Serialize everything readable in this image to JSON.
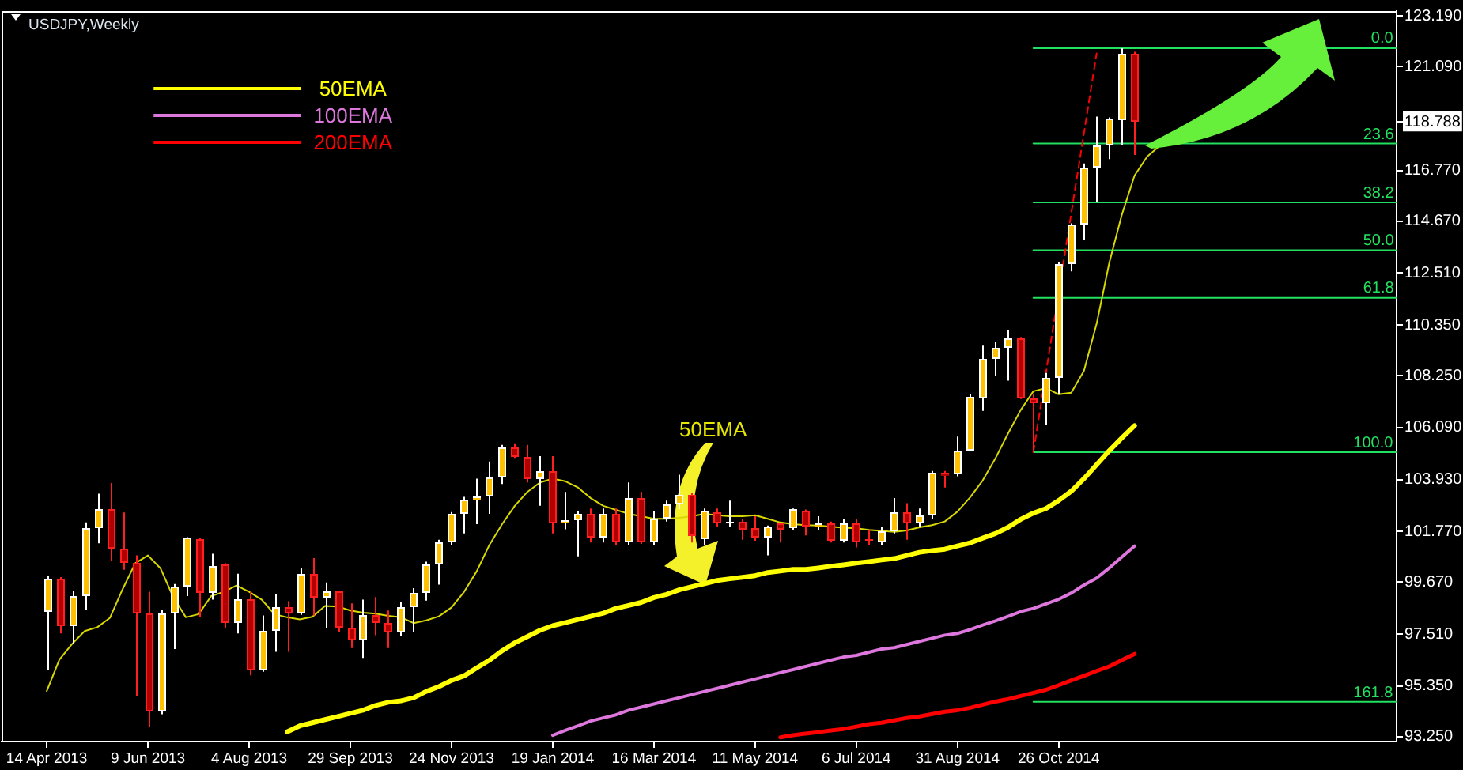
{
  "chart_data": {
    "type": "candlestick",
    "title": "USDJPY,Weekly",
    "x": [
      "2013-04-14",
      "2013-04-21",
      "2013-04-28",
      "2013-05-05",
      "2013-05-12",
      "2013-05-19",
      "2013-05-26",
      "2013-06-02",
      "2013-06-09",
      "2013-06-16",
      "2013-06-23",
      "2013-06-30",
      "2013-07-07",
      "2013-07-14",
      "2013-07-21",
      "2013-07-28",
      "2013-08-04",
      "2013-08-11",
      "2013-08-18",
      "2013-08-25",
      "2013-09-01",
      "2013-09-08",
      "2013-09-15",
      "2013-09-22",
      "2013-09-29",
      "2013-10-06",
      "2013-10-13",
      "2013-10-20",
      "2013-10-27",
      "2013-11-03",
      "2013-11-10",
      "2013-11-17",
      "2013-11-24",
      "2013-12-01",
      "2013-12-08",
      "2013-12-15",
      "2013-12-22",
      "2013-12-29",
      "2014-01-05",
      "2014-01-12",
      "2014-01-19",
      "2014-01-26",
      "2014-02-02",
      "2014-02-09",
      "2014-02-16",
      "2014-02-23",
      "2014-03-02",
      "2014-03-09",
      "2014-03-16",
      "2014-03-23",
      "2014-03-30",
      "2014-04-06",
      "2014-04-13",
      "2014-04-20",
      "2014-04-27",
      "2014-05-04",
      "2014-05-11",
      "2014-05-18",
      "2014-05-25",
      "2014-06-01",
      "2014-06-08",
      "2014-06-15",
      "2014-06-22",
      "2014-06-29",
      "2014-07-06",
      "2014-07-13",
      "2014-07-20",
      "2014-07-27",
      "2014-08-03",
      "2014-08-10",
      "2014-08-17",
      "2014-08-24",
      "2014-08-31",
      "2014-09-07",
      "2014-09-14",
      "2014-09-21",
      "2014-09-28",
      "2014-10-05",
      "2014-10-12",
      "2014-10-19",
      "2014-10-26",
      "2014-11-02",
      "2014-11-09",
      "2014-11-16",
      "2014-11-23",
      "2014-11-30",
      "2014-12-07"
    ],
    "ohlc": [
      [
        98.44,
        99.92,
        96.02,
        99.81
      ],
      [
        99.81,
        99.88,
        97.54,
        97.86
      ],
      [
        97.86,
        99.31,
        97.1,
        99.12
      ],
      [
        99.12,
        102.15,
        98.51,
        101.93
      ],
      [
        101.93,
        103.34,
        101.28,
        102.71
      ],
      [
        102.71,
        103.79,
        100.57,
        101.06
      ],
      [
        101.09,
        102.56,
        100.18,
        100.5
      ],
      [
        100.5,
        100.78,
        94.94,
        98.36
      ],
      [
        98.38,
        99.27,
        93.64,
        94.33
      ],
      [
        94.29,
        98.51,
        94.18,
        98.38
      ],
      [
        98.34,
        99.59,
        96.89,
        99.46
      ],
      [
        99.46,
        101.54,
        99.09,
        101.5
      ],
      [
        101.48,
        101.52,
        98.21,
        99.2
      ],
      [
        99.2,
        100.85,
        98.94,
        100.35
      ],
      [
        100.39,
        100.46,
        97.75,
        97.97
      ],
      [
        97.97,
        100.02,
        97.54,
        98.96
      ],
      [
        98.96,
        99.27,
        95.8,
        96.02
      ],
      [
        96.02,
        98.29,
        95.95,
        97.64
      ],
      [
        97.64,
        99.16,
        96.78,
        98.66
      ],
      [
        98.66,
        98.88,
        96.78,
        98.36
      ],
      [
        98.36,
        100.24,
        98.31,
        100.0
      ],
      [
        100.0,
        100.67,
        98.29,
        99.01
      ],
      [
        99.01,
        99.66,
        97.75,
        99.27
      ],
      [
        99.27,
        99.31,
        97.58,
        97.75
      ],
      [
        97.8,
        98.79,
        96.93,
        97.25
      ],
      [
        97.25,
        98.94,
        96.52,
        98.29
      ],
      [
        98.31,
        99.05,
        97.47,
        97.97
      ],
      [
        97.97,
        98.49,
        96.93,
        97.58
      ],
      [
        97.58,
        98.83,
        97.43,
        98.66
      ],
      [
        98.66,
        99.42,
        97.58,
        99.2
      ],
      [
        99.2,
        100.52,
        98.9,
        100.39
      ],
      [
        100.39,
        101.43,
        99.57,
        101.3
      ],
      [
        101.3,
        102.58,
        101.22,
        102.51
      ],
      [
        102.51,
        103.21,
        101.69,
        103.1
      ],
      [
        103.1,
        103.97,
        102.08,
        103.23
      ],
      [
        103.23,
        104.68,
        102.51,
        104.01
      ],
      [
        104.01,
        105.37,
        103.75,
        105.29
      ],
      [
        105.29,
        105.44,
        104.83,
        104.9
      ],
      [
        104.9,
        105.37,
        103.81,
        103.92
      ],
      [
        103.92,
        104.9,
        102.84,
        104.25
      ],
      [
        104.29,
        104.9,
        101.69,
        102.13
      ],
      [
        102.13,
        103.42,
        101.87,
        102.26
      ],
      [
        102.26,
        102.62,
        100.74,
        102.51
      ],
      [
        102.51,
        102.73,
        101.32,
        101.52
      ],
      [
        101.52,
        102.73,
        101.32,
        102.51
      ],
      [
        102.51,
        102.73,
        101.22,
        101.32
      ],
      [
        101.32,
        103.81,
        101.22,
        103.16
      ],
      [
        103.16,
        103.42,
        101.26,
        101.32
      ],
      [
        101.32,
        102.62,
        101.22,
        102.3
      ],
      [
        102.3,
        103.06,
        102.19,
        102.9
      ],
      [
        102.9,
        104.13,
        102.7,
        103.27
      ],
      [
        103.27,
        103.38,
        101.32,
        101.6
      ],
      [
        101.43,
        102.73,
        101.22,
        102.62
      ],
      [
        102.58,
        102.73,
        101.97,
        102.13
      ],
      [
        102.08,
        103.06,
        101.97,
        102.19
      ],
      [
        102.19,
        102.3,
        101.43,
        101.87
      ],
      [
        101.91,
        102.41,
        101.39,
        101.54
      ],
      [
        101.54,
        102.02,
        100.78,
        101.97
      ],
      [
        102.08,
        102.1,
        101.32,
        101.87
      ],
      [
        101.91,
        102.73,
        101.82,
        102.69
      ],
      [
        102.62,
        102.69,
        101.61,
        101.97
      ],
      [
        101.97,
        102.41,
        101.82,
        102.13
      ],
      [
        102.13,
        102.19,
        101.32,
        101.39
      ],
      [
        101.39,
        102.3,
        101.32,
        102.13
      ],
      [
        102.13,
        102.3,
        101.11,
        101.35
      ],
      [
        101.43,
        101.82,
        101.22,
        101.37
      ],
      [
        101.32,
        101.97,
        101.22,
        101.76
      ],
      [
        101.76,
        103.16,
        101.69,
        102.58
      ],
      [
        102.58,
        102.95,
        101.43,
        102.08
      ],
      [
        102.08,
        102.73,
        101.97,
        102.41
      ],
      [
        102.41,
        104.29,
        102.3,
        104.2
      ],
      [
        104.2,
        104.29,
        103.6,
        104.09
      ],
      [
        104.14,
        105.72,
        104.07,
        105.16
      ],
      [
        105.16,
        107.49,
        105.11,
        107.39
      ],
      [
        107.32,
        109.49,
        106.78,
        108.97
      ],
      [
        108.97,
        109.66,
        108.23,
        109.4
      ],
      [
        109.4,
        110.14,
        108.04,
        109.81
      ],
      [
        109.81,
        109.85,
        107.28,
        107.32
      ],
      [
        107.32,
        107.49,
        105.07,
        107.1
      ],
      [
        107.1,
        108.36,
        106.2,
        108.14
      ],
      [
        108.14,
        112.95,
        107.49,
        112.86
      ],
      [
        112.86,
        114.57,
        112.58,
        114.53
      ],
      [
        114.53,
        117.06,
        113.88,
        116.87
      ],
      [
        116.87,
        119.01,
        115.44,
        117.78
      ],
      [
        117.78,
        118.97,
        117.24,
        118.9
      ],
      [
        118.86,
        121.85,
        117.82,
        121.61
      ],
      [
        121.61,
        121.7,
        117.41,
        118.788
      ]
    ],
    "colors": [
      "#ffc000",
      "#b00000",
      "#ffc000",
      "#ffc000",
      "#ffc000",
      "#b00000",
      "#b00000",
      "#b00000",
      "#b00000",
      "#ffc000",
      "#ffc000",
      "#ffc000",
      "#b00000",
      "#ffc000",
      "#b00000",
      "#ffc000",
      "#b00000",
      "#ffc000",
      "#ffc000",
      "#b00000",
      "#ffc000",
      "#b00000",
      "#ffc000",
      "#b00000",
      "#b00000",
      "#ffc000",
      "#b00000",
      "#b00000",
      "#ffc000",
      "#ffc000",
      "#ffc000",
      "#ffc000",
      "#ffc000",
      "#ffc000",
      "#ffc000",
      "#ffc000",
      "#ffc000",
      "#b00000",
      "#b00000",
      "#ffc000",
      "#b00000",
      "#ffc000",
      "#ffc000",
      "#b00000",
      "#ffc000",
      "#b00000",
      "#ffc000",
      "#b00000",
      "#ffc000",
      "#ffc000",
      "#ffc000",
      "#b00000",
      "#ffc000",
      "#b00000",
      "#ffc000",
      "#b00000",
      "#b00000",
      "#ffc000",
      "#b00000",
      "#ffc000",
      "#b00000",
      "#ffc000",
      "#b00000",
      "#ffc000",
      "#b00000",
      "#b00000",
      "#ffc000",
      "#ffc000",
      "#b00000",
      "#ffc000",
      "#ffc000",
      "#b00000",
      "#ffc000",
      "#ffc000",
      "#ffc000",
      "#ffc000",
      "#ffc000",
      "#b00000",
      "#b00000",
      "#ffc000",
      "#ffc000",
      "#ffc000",
      "#ffc000",
      "#ffc000",
      "#ffc000",
      "#ffc000",
      "#b00000"
    ],
    "series": [
      {
        "name": "50EMA",
        "type": "line",
        "color": "#ffff00",
        "values": [
          null,
          null,
          null,
          null,
          null,
          null,
          null,
          null,
          null,
          null,
          null,
          null,
          null,
          null,
          null,
          null,
          null,
          null,
          null,
          93.45,
          93.7,
          93.83,
          93.96,
          94.09,
          94.22,
          94.35,
          94.55,
          94.68,
          94.74,
          94.87,
          95.13,
          95.33,
          95.59,
          95.78,
          96.11,
          96.43,
          96.82,
          97.15,
          97.41,
          97.67,
          97.86,
          97.99,
          98.12,
          98.25,
          98.38,
          98.58,
          98.7,
          98.83,
          99.03,
          99.16,
          99.35,
          99.48,
          99.61,
          99.74,
          99.81,
          99.87,
          99.94,
          100.07,
          100.13,
          100.2,
          100.2,
          100.26,
          100.33,
          100.39,
          100.46,
          100.52,
          100.59,
          100.65,
          100.78,
          100.91,
          100.98,
          101.04,
          101.17,
          101.3,
          101.5,
          101.69,
          101.95,
          102.28,
          102.54,
          102.73,
          103.06,
          103.45,
          103.97,
          104.55,
          105.13,
          105.66,
          106.17
        ]
      },
      {
        "name": "100EMA",
        "type": "line",
        "color": "#dd77dd",
        "values": [
          null,
          null,
          null,
          null,
          null,
          null,
          null,
          null,
          null,
          null,
          null,
          null,
          null,
          null,
          null,
          null,
          null,
          null,
          null,
          null,
          null,
          null,
          null,
          null,
          null,
          null,
          null,
          null,
          null,
          null,
          null,
          null,
          null,
          null,
          null,
          null,
          null,
          null,
          null,
          null,
          93.31,
          93.51,
          93.7,
          93.9,
          94.03,
          94.16,
          94.35,
          94.48,
          94.61,
          94.74,
          94.87,
          95.0,
          95.13,
          95.26,
          95.39,
          95.52,
          95.65,
          95.78,
          95.91,
          96.04,
          96.17,
          96.3,
          96.43,
          96.56,
          96.63,
          96.76,
          96.89,
          96.95,
          97.08,
          97.21,
          97.34,
          97.47,
          97.54,
          97.7,
          97.89,
          98.06,
          98.25,
          98.45,
          98.58,
          98.77,
          98.96,
          99.22,
          99.55,
          99.84,
          100.26,
          100.72,
          101.17
        ]
      },
      {
        "name": "200EMA",
        "type": "line",
        "color": "#ff0000",
        "values": [
          null,
          null,
          null,
          null,
          null,
          null,
          null,
          null,
          null,
          null,
          null,
          null,
          null,
          null,
          null,
          null,
          null,
          null,
          null,
          null,
          null,
          null,
          null,
          null,
          null,
          null,
          null,
          null,
          null,
          null,
          null,
          null,
          null,
          null,
          null,
          null,
          null,
          null,
          null,
          null,
          null,
          null,
          null,
          null,
          null,
          null,
          null,
          null,
          null,
          null,
          null,
          null,
          null,
          null,
          null,
          null,
          null,
          null,
          93.22,
          93.31,
          93.38,
          93.44,
          93.51,
          93.57,
          93.67,
          93.77,
          93.83,
          93.93,
          94.03,
          94.09,
          94.19,
          94.29,
          94.35,
          94.45,
          94.58,
          94.71,
          94.81,
          94.94,
          95.07,
          95.2,
          95.39,
          95.59,
          95.78,
          95.98,
          96.17,
          96.43,
          96.69
        ]
      },
      {
        "type": "line",
        "color": "#d8d800",
        "x": [
          "2013-04-14",
          "2013-04-21",
          "2013-04-28",
          "2013-05-05",
          "2013-05-12",
          "2013-05-19",
          "2013-05-26",
          "2013-06-02",
          "2013-06-09",
          "2013-06-16",
          "2013-06-23",
          "2013-06-30",
          "2013-07-07",
          "2013-07-14",
          "2013-07-21",
          "2013-07-28",
          "2013-08-04",
          "2013-08-11",
          "2013-08-18",
          "2013-08-25",
          "2013-09-01",
          "2013-09-08",
          "2013-09-15",
          "2013-09-22",
          "2013-09-29",
          "2013-10-06",
          "2013-10-13",
          "2013-10-20",
          "2013-10-27",
          "2013-11-03",
          "2013-11-10",
          "2013-11-17",
          "2013-11-24",
          "2013-12-01",
          "2013-12-08",
          "2013-12-15",
          "2013-12-22",
          "2013-12-29",
          "2014-01-05",
          "2014-01-12",
          "2014-01-19",
          "2014-01-26",
          "2014-02-02",
          "2014-02-09",
          "2014-02-16",
          "2014-02-23",
          "2014-03-02",
          "2014-03-09",
          "2014-03-16",
          "2014-03-23",
          "2014-03-30",
          "2014-04-06",
          "2014-04-13",
          "2014-04-20",
          "2014-04-27",
          "2014-05-04",
          "2014-05-11",
          "2014-05-18",
          "2014-05-25",
          "2014-06-01",
          "2014-06-08",
          "2014-06-15",
          "2014-06-22",
          "2014-06-29",
          "2014-07-06",
          "2014-07-13",
          "2014-07-20",
          "2014-07-27",
          "2014-08-03",
          "2014-08-10",
          "2014-08-17",
          "2014-08-24",
          "2014-08-31",
          "2014-09-07",
          "2014-09-14",
          "2014-09-21",
          "2014-09-28",
          "2014-10-05",
          "2014-10-12",
          "2014-10-19",
          "2014-10-26",
          "2014-11-02",
          "2014-11-09",
          "2014-11-16",
          "2014-11-23",
          "2014-11-30",
          "2014-12-07",
          "2014-12-14",
          "2014-12-21"
        ],
        "values": [
          95.15,
          96.45,
          97.1,
          97.64,
          97.8,
          98.19,
          99.38,
          100.46,
          100.78,
          100.24,
          99.05,
          98.21,
          98.34,
          99.09,
          99.27,
          99.53,
          99.27,
          98.94,
          98.34,
          98.21,
          98.12,
          98.23,
          98.68,
          98.66,
          98.49,
          98.4,
          98.36,
          98.27,
          98.21,
          97.97,
          98.08,
          98.25,
          98.62,
          99.27,
          100.13,
          101.22,
          102.08,
          102.84,
          103.42,
          103.81,
          103.97,
          103.86,
          103.6,
          103.16,
          102.84,
          102.67,
          102.51,
          102.41,
          102.3,
          102.3,
          102.34,
          102.41,
          102.51,
          102.45,
          102.41,
          102.41,
          102.45,
          102.3,
          102.15,
          102.08,
          102.04,
          102.02,
          101.97,
          101.93,
          101.91,
          101.84,
          101.8,
          101.76,
          101.82,
          101.95,
          102.04,
          102.19,
          102.6,
          103.19,
          103.9,
          104.81,
          105.85,
          106.82,
          107.6,
          107.73,
          107.47,
          107.54,
          108.45,
          110.4,
          112.93,
          114.94,
          116.56,
          117.35,
          117.8
        ]
      },
      {
        "type": "line",
        "color": "#ff0000",
        "line_style": "dashed",
        "x": [
          "2014-10-12",
          "2014-11-16"
        ],
        "values": [
          105.07,
          121.63
        ]
      },
      {
        "type": "line",
        "color": "#22e060",
        "x": [
          "2014-10-12",
          "2015-05-01"
        ],
        "values": [
          121.85,
          121.85
        ]
      },
      {
        "type": "line",
        "color": "#22e060",
        "x": [
          "2014-10-12",
          "2015-05-01"
        ],
        "values": [
          117.89,
          117.89
        ]
      },
      {
        "type": "line",
        "color": "#22e060",
        "x": [
          "2014-10-12",
          "2015-05-01"
        ],
        "values": [
          115.44,
          115.44
        ]
      },
      {
        "type": "line",
        "color": "#22e060",
        "x": [
          "2014-10-12",
          "2015-05-01"
        ],
        "values": [
          113.46,
          113.46
        ]
      },
      {
        "type": "line",
        "color": "#22e060",
        "x": [
          "2014-10-12",
          "2015-05-01"
        ],
        "values": [
          111.48,
          111.48
        ]
      },
      {
        "type": "line",
        "color": "#22e060",
        "x": [
          "2014-10-12",
          "2015-05-01"
        ],
        "values": [
          105.07,
          105.07
        ]
      },
      {
        "type": "line",
        "color": "#22e060",
        "x": [
          "2014-10-12",
          "2015-05-01"
        ],
        "values": [
          94.7,
          94.7
        ]
      }
    ],
    "xlim": [
      "2013-03-20",
      "2015-05-01"
    ],
    "xticks": [
      {
        "value": "2013-04-14",
        "label": "14 Apr 2013"
      },
      {
        "value": "2013-06-09",
        "label": "9 Jun 2013"
      },
      {
        "value": "2013-08-04",
        "label": "4 Aug 2013"
      },
      {
        "value": "2013-09-29",
        "label": "29 Sep 2013"
      },
      {
        "value": "2013-11-24",
        "label": "24 Nov 2013"
      },
      {
        "value": "2014-01-19",
        "label": "19 Jan 2014"
      },
      {
        "value": "2014-03-16",
        "label": "16 Mar 2014"
      },
      {
        "value": "2014-05-11",
        "label": "11 May 2014"
      },
      {
        "value": "2014-07-06",
        "label": "6 Jul 2014"
      },
      {
        "value": "2014-08-31",
        "label": "31 Aug 2014"
      },
      {
        "value": "2014-10-26",
        "label": "26 Oct 2014"
      }
    ],
    "ylim": [
      93.05,
      123.39
    ],
    "yticks": [
      {
        "value": 93.25,
        "label": "93.250"
      },
      {
        "value": 95.35,
        "label": "95.350"
      },
      {
        "value": 97.51,
        "label": "97.510"
      },
      {
        "value": 99.67,
        "label": "99.670"
      },
      {
        "value": 101.77,
        "label": "101.770"
      },
      {
        "value": 103.93,
        "label": "103.930"
      },
      {
        "value": 106.09,
        "label": "106.090"
      },
      {
        "value": 108.25,
        "label": "108.250"
      },
      {
        "value": 110.35,
        "label": "110.350"
      },
      {
        "value": 112.51,
        "label": "112.510"
      },
      {
        "value": 114.67,
        "label": "114.670"
      },
      {
        "value": 116.77,
        "label": "116.770"
      },
      118.788,
      {
        "value": 121.09,
        "label": "121.090"
      },
      {
        "value": 123.19,
        "label": "123.190"
      }
    ],
    "annotations": [
      "50EMA",
      {
        "text": "0.0",
        "x": "2015-04-23",
        "y": 121.85
      },
      {
        "text": "23.6",
        "x": "2015-04-21",
        "y": 117.89
      },
      {
        "text": "38.2",
        "x": "2015-04-21",
        "y": 115.44
      },
      {
        "text": "50.0",
        "x": "2015-04-21",
        "y": 113.46
      },
      {
        "text": "61.8",
        "x": "2015-04-21",
        "y": 111.48
      },
      {
        "text": "100.0",
        "x": "2015-04-18",
        "y": 105.07
      },
      {
        "text": "161.8",
        "x": "2015-04-18",
        "y": 94.7
      }
    ],
    "legend": "top left"
  }
}
